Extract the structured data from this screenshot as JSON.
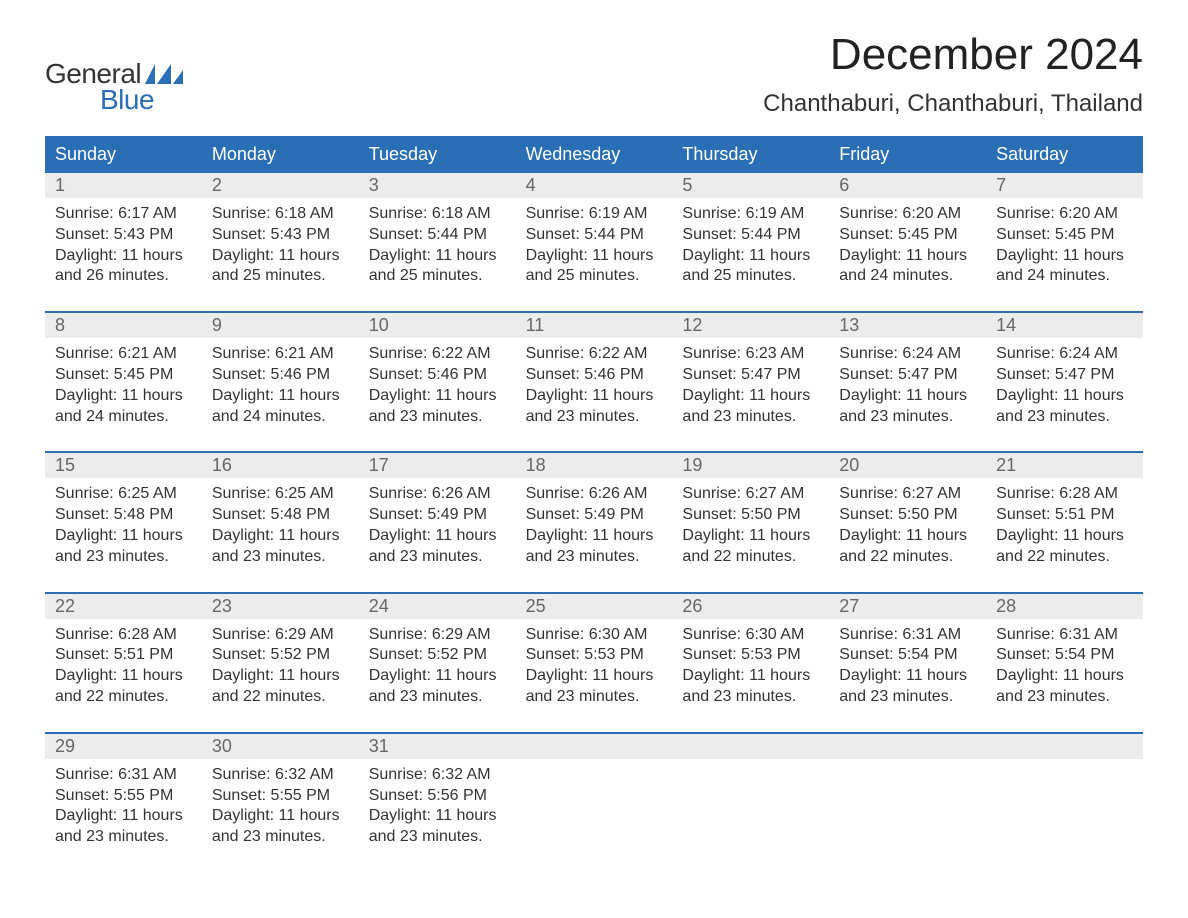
{
  "logo": {
    "text1": "General",
    "text2": "Blue",
    "flag_color": "#2a6fb5"
  },
  "header": {
    "month_title": "December 2024",
    "location": "Chanthaburi, Chanthaburi, Thailand"
  },
  "colors": {
    "header_bg": "#2a6fb5",
    "header_text": "#ffffff",
    "daynum_bg": "#ececec",
    "daynum_text": "#666666",
    "body_text": "#333333",
    "week_border": "#2a6fb5",
    "page_bg": "#ffffff"
  },
  "typography": {
    "month_title_fontsize": 44,
    "location_fontsize": 24,
    "weekday_fontsize": 18,
    "daynum_fontsize": 18,
    "cell_fontsize": 16,
    "logo_fontsize": 28
  },
  "weekdays": [
    "Sunday",
    "Monday",
    "Tuesday",
    "Wednesday",
    "Thursday",
    "Friday",
    "Saturday"
  ],
  "weeks": [
    [
      {
        "day": "1",
        "sunrise": "Sunrise: 6:17 AM",
        "sunset": "Sunset: 5:43 PM",
        "daylight1": "Daylight: 11 hours",
        "daylight2": "and 26 minutes."
      },
      {
        "day": "2",
        "sunrise": "Sunrise: 6:18 AM",
        "sunset": "Sunset: 5:43 PM",
        "daylight1": "Daylight: 11 hours",
        "daylight2": "and 25 minutes."
      },
      {
        "day": "3",
        "sunrise": "Sunrise: 6:18 AM",
        "sunset": "Sunset: 5:44 PM",
        "daylight1": "Daylight: 11 hours",
        "daylight2": "and 25 minutes."
      },
      {
        "day": "4",
        "sunrise": "Sunrise: 6:19 AM",
        "sunset": "Sunset: 5:44 PM",
        "daylight1": "Daylight: 11 hours",
        "daylight2": "and 25 minutes."
      },
      {
        "day": "5",
        "sunrise": "Sunrise: 6:19 AM",
        "sunset": "Sunset: 5:44 PM",
        "daylight1": "Daylight: 11 hours",
        "daylight2": "and 25 minutes."
      },
      {
        "day": "6",
        "sunrise": "Sunrise: 6:20 AM",
        "sunset": "Sunset: 5:45 PM",
        "daylight1": "Daylight: 11 hours",
        "daylight2": "and 24 minutes."
      },
      {
        "day": "7",
        "sunrise": "Sunrise: 6:20 AM",
        "sunset": "Sunset: 5:45 PM",
        "daylight1": "Daylight: 11 hours",
        "daylight2": "and 24 minutes."
      }
    ],
    [
      {
        "day": "8",
        "sunrise": "Sunrise: 6:21 AM",
        "sunset": "Sunset: 5:45 PM",
        "daylight1": "Daylight: 11 hours",
        "daylight2": "and 24 minutes."
      },
      {
        "day": "9",
        "sunrise": "Sunrise: 6:21 AM",
        "sunset": "Sunset: 5:46 PM",
        "daylight1": "Daylight: 11 hours",
        "daylight2": "and 24 minutes."
      },
      {
        "day": "10",
        "sunrise": "Sunrise: 6:22 AM",
        "sunset": "Sunset: 5:46 PM",
        "daylight1": "Daylight: 11 hours",
        "daylight2": "and 23 minutes."
      },
      {
        "day": "11",
        "sunrise": "Sunrise: 6:22 AM",
        "sunset": "Sunset: 5:46 PM",
        "daylight1": "Daylight: 11 hours",
        "daylight2": "and 23 minutes."
      },
      {
        "day": "12",
        "sunrise": "Sunrise: 6:23 AM",
        "sunset": "Sunset: 5:47 PM",
        "daylight1": "Daylight: 11 hours",
        "daylight2": "and 23 minutes."
      },
      {
        "day": "13",
        "sunrise": "Sunrise: 6:24 AM",
        "sunset": "Sunset: 5:47 PM",
        "daylight1": "Daylight: 11 hours",
        "daylight2": "and 23 minutes."
      },
      {
        "day": "14",
        "sunrise": "Sunrise: 6:24 AM",
        "sunset": "Sunset: 5:47 PM",
        "daylight1": "Daylight: 11 hours",
        "daylight2": "and 23 minutes."
      }
    ],
    [
      {
        "day": "15",
        "sunrise": "Sunrise: 6:25 AM",
        "sunset": "Sunset: 5:48 PM",
        "daylight1": "Daylight: 11 hours",
        "daylight2": "and 23 minutes."
      },
      {
        "day": "16",
        "sunrise": "Sunrise: 6:25 AM",
        "sunset": "Sunset: 5:48 PM",
        "daylight1": "Daylight: 11 hours",
        "daylight2": "and 23 minutes."
      },
      {
        "day": "17",
        "sunrise": "Sunrise: 6:26 AM",
        "sunset": "Sunset: 5:49 PM",
        "daylight1": "Daylight: 11 hours",
        "daylight2": "and 23 minutes."
      },
      {
        "day": "18",
        "sunrise": "Sunrise: 6:26 AM",
        "sunset": "Sunset: 5:49 PM",
        "daylight1": "Daylight: 11 hours",
        "daylight2": "and 23 minutes."
      },
      {
        "day": "19",
        "sunrise": "Sunrise: 6:27 AM",
        "sunset": "Sunset: 5:50 PM",
        "daylight1": "Daylight: 11 hours",
        "daylight2": "and 22 minutes."
      },
      {
        "day": "20",
        "sunrise": "Sunrise: 6:27 AM",
        "sunset": "Sunset: 5:50 PM",
        "daylight1": "Daylight: 11 hours",
        "daylight2": "and 22 minutes."
      },
      {
        "day": "21",
        "sunrise": "Sunrise: 6:28 AM",
        "sunset": "Sunset: 5:51 PM",
        "daylight1": "Daylight: 11 hours",
        "daylight2": "and 22 minutes."
      }
    ],
    [
      {
        "day": "22",
        "sunrise": "Sunrise: 6:28 AM",
        "sunset": "Sunset: 5:51 PM",
        "daylight1": "Daylight: 11 hours",
        "daylight2": "and 22 minutes."
      },
      {
        "day": "23",
        "sunrise": "Sunrise: 6:29 AM",
        "sunset": "Sunset: 5:52 PM",
        "daylight1": "Daylight: 11 hours",
        "daylight2": "and 22 minutes."
      },
      {
        "day": "24",
        "sunrise": "Sunrise: 6:29 AM",
        "sunset": "Sunset: 5:52 PM",
        "daylight1": "Daylight: 11 hours",
        "daylight2": "and 23 minutes."
      },
      {
        "day": "25",
        "sunrise": "Sunrise: 6:30 AM",
        "sunset": "Sunset: 5:53 PM",
        "daylight1": "Daylight: 11 hours",
        "daylight2": "and 23 minutes."
      },
      {
        "day": "26",
        "sunrise": "Sunrise: 6:30 AM",
        "sunset": "Sunset: 5:53 PM",
        "daylight1": "Daylight: 11 hours",
        "daylight2": "and 23 minutes."
      },
      {
        "day": "27",
        "sunrise": "Sunrise: 6:31 AM",
        "sunset": "Sunset: 5:54 PM",
        "daylight1": "Daylight: 11 hours",
        "daylight2": "and 23 minutes."
      },
      {
        "day": "28",
        "sunrise": "Sunrise: 6:31 AM",
        "sunset": "Sunset: 5:54 PM",
        "daylight1": "Daylight: 11 hours",
        "daylight2": "and 23 minutes."
      }
    ],
    [
      {
        "day": "29",
        "sunrise": "Sunrise: 6:31 AM",
        "sunset": "Sunset: 5:55 PM",
        "daylight1": "Daylight: 11 hours",
        "daylight2": "and 23 minutes."
      },
      {
        "day": "30",
        "sunrise": "Sunrise: 6:32 AM",
        "sunset": "Sunset: 5:55 PM",
        "daylight1": "Daylight: 11 hours",
        "daylight2": "and 23 minutes."
      },
      {
        "day": "31",
        "sunrise": "Sunrise: 6:32 AM",
        "sunset": "Sunset: 5:56 PM",
        "daylight1": "Daylight: 11 hours",
        "daylight2": "and 23 minutes."
      },
      null,
      null,
      null,
      null
    ]
  ]
}
